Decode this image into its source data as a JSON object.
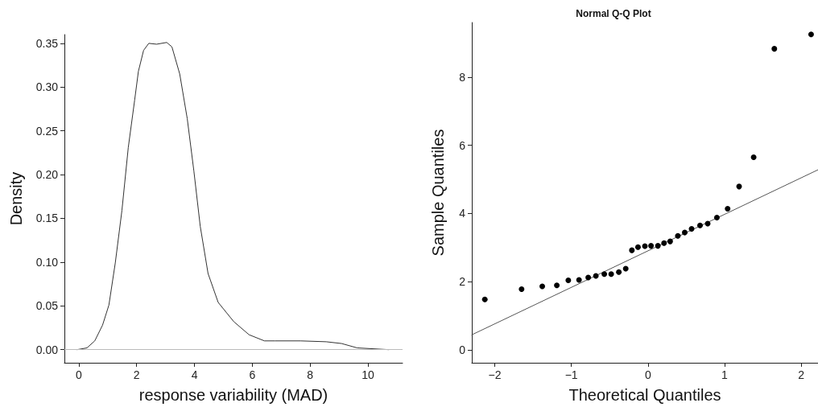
{
  "chart_data": [
    {
      "type": "line",
      "xlabel": "response variability (MAD)",
      "ylabel": "Density",
      "marker": "none",
      "line_style": "solid",
      "xlim": [
        -0.5,
        11.2
      ],
      "xticks": [
        0,
        2,
        4,
        6,
        8,
        10
      ],
      "ylim": [
        -0.015,
        0.36
      ],
      "yticks": [
        {
          "value": 0,
          "label": "0.00"
        },
        {
          "value": 0.05,
          "label": "0.05"
        },
        {
          "value": 0.1,
          "label": "0.10"
        },
        {
          "value": 0.15,
          "label": "0.15"
        },
        {
          "value": 0.2,
          "label": "0.20"
        },
        {
          "value": 0.25,
          "label": "0.25"
        },
        {
          "value": 0.3,
          "label": "0.30"
        },
        {
          "value": 0.35,
          "label": "0.35"
        }
      ],
      "ref_lines": [
        {
          "axis": "y",
          "value": 0,
          "color": "#bbbbbb"
        }
      ],
      "series": [
        {
          "color": "#333333",
          "x": [
            -0.06,
            0.28,
            0.55,
            0.82,
            1.04,
            1.26,
            1.49,
            1.71,
            1.93,
            2.06,
            2.24,
            2.42,
            2.69,
            3.04,
            3.22,
            3.49,
            3.75,
            3.98,
            4.2,
            4.47,
            4.82,
            5.36,
            5.89,
            6.42,
            6.78,
            7.67,
            8.56,
            9.09,
            9.63,
            10.72
          ],
          "values": [
            0,
            0.002,
            0.01,
            0.028,
            0.051,
            0.099,
            0.159,
            0.231,
            0.285,
            0.318,
            0.342,
            0.35,
            0.349,
            0.351,
            0.346,
            0.315,
            0.264,
            0.204,
            0.141,
            0.087,
            0.054,
            0.032,
            0.017,
            0.01,
            0.01,
            0.01,
            0.009,
            0.007,
            0.002,
            0
          ]
        }
      ]
    },
    {
      "type": "scatter",
      "title": "Normal Q-Q Plot",
      "xlabel": "Theoretical Quantiles",
      "ylabel": "Sample Quantiles",
      "marker": "circle",
      "xlim": [
        -2.3,
        2.22
      ],
      "xticks": [
        {
          "value": -2,
          "label": "−2"
        },
        {
          "value": -1,
          "label": "−1"
        },
        0,
        1,
        2
      ],
      "ylim": [
        -0.38,
        9.6
      ],
      "yticks": [
        0,
        2,
        4,
        6,
        8
      ],
      "series": [
        {
          "color": "#000000",
          "x": [
            -2.13,
            -1.65,
            -1.38,
            -1.19,
            -1.04,
            -0.9,
            -0.78,
            -0.68,
            -0.57,
            -0.48,
            -0.38,
            -0.29,
            -0.21,
            -0.13,
            -0.04,
            0.04,
            0.13,
            0.21,
            0.29,
            0.39,
            0.48,
            0.57,
            0.68,
            0.78,
            0.9,
            1.04,
            1.19,
            1.38,
            1.65,
            2.13
          ],
          "values": [
            1.48,
            1.78,
            1.86,
            1.89,
            2.04,
            2.05,
            2.12,
            2.17,
            2.22,
            2.22,
            2.28,
            2.38,
            2.92,
            3.01,
            3.04,
            3.05,
            3.05,
            3.13,
            3.18,
            3.34,
            3.44,
            3.55,
            3.65,
            3.7,
            3.88,
            4.14,
            4.79,
            5.65,
            8.83,
            9.25
          ]
        },
        {
          "type": "line",
          "marker": "none",
          "color": "#555555",
          "x": [
            -2.3,
            2.22
          ],
          "values": [
            0.44,
            5.28
          ]
        }
      ]
    }
  ]
}
